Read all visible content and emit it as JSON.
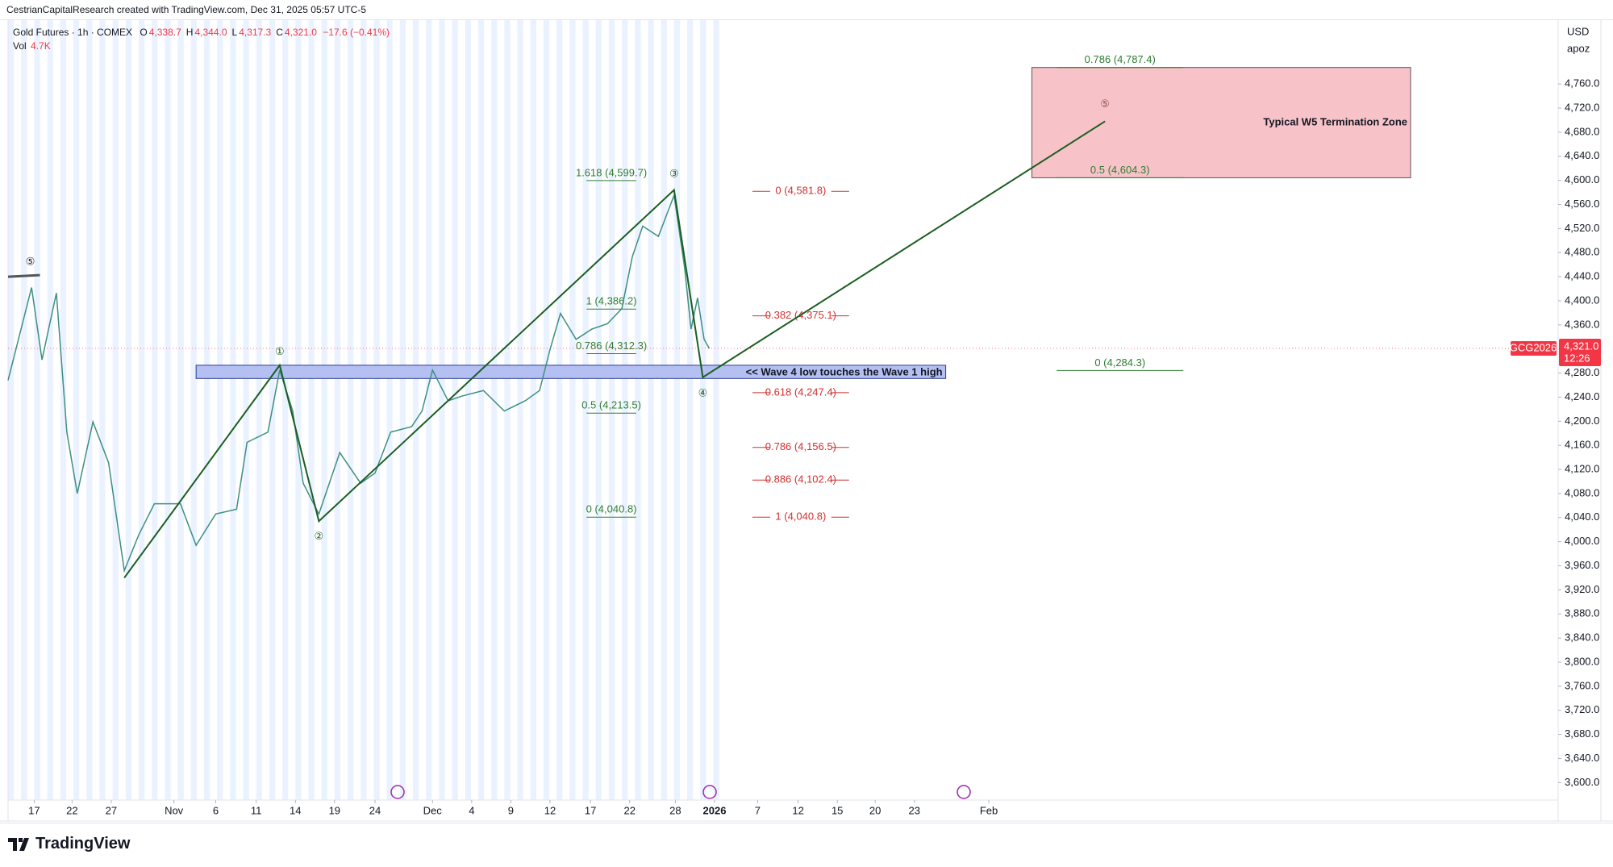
{
  "header": {
    "attribution": "CestrianCapitalResearch created with TradingView.com, Dec 31, 2025 05:57 UTC-5",
    "logo": "TradingView"
  },
  "chart_data": {
    "type": "line",
    "title": "Gold Futures · 1h · COMEX",
    "ohlc": [
      {
        "name": "O",
        "value": {
          "value": 4338.7,
          "label": "4,338.7"
        }
      },
      {
        "name": "H",
        "value": {
          "value": 4344.0,
          "label": "4,344.0"
        }
      },
      {
        "name": "L",
        "value": {
          "value": 4317.3,
          "label": "4,317.3"
        }
      },
      {
        "name": "C",
        "value": {
          "value": 4321.0,
          "label": "4,321.0"
        }
      }
    ],
    "change": "−17.6 (−0.41%)",
    "volume": {
      "name": "Vol",
      "label": "4.7K"
    },
    "currency": "USD",
    "scale_label": "apoz",
    "symbol": "GCG2026",
    "last_price": {
      "value": 4321.0,
      "label": "4,321.0"
    },
    "countdown": "12:26",
    "x": [
      -2.0,
      -0.2,
      0.6,
      1.7,
      2.5,
      3.3,
      4.5,
      5.7,
      6.9,
      8.0,
      9.2,
      11.2,
      12.4,
      13.9,
      15.5,
      16.3,
      17.9,
      18.8,
      19.8,
      20.6,
      21.8,
      23.4,
      25.0,
      26.1,
      27.3,
      28.9,
      29.7,
      30.5,
      31.7,
      32.8,
      34.4,
      36.0,
      37.6,
      38.7,
      39.5,
      40.3,
      41.5,
      42.7,
      43.9,
      45.0,
      45.8,
      46.6,
      47.8,
      49.0,
      49.8,
      50.3,
      50.8,
      51.3,
      51.7
    ],
    "series": [
      {
        "color": "#3d8f80",
        "values": [
          4268,
          4422,
          4302,
          4413,
          4182,
          4080,
          4199,
          4131,
          3952,
          4011,
          4063,
          4063,
          3994,
          4046,
          4054,
          4165,
          4182,
          4285,
          4217,
          4097,
          4046,
          4148,
          4097,
          4114,
          4182,
          4191,
          4217,
          4285,
          4234,
          4242,
          4251,
          4217,
          4234,
          4251,
          4319,
          4379,
          4336,
          4353,
          4362,
          4387,
          4473,
          4524,
          4507,
          4575,
          4456,
          4353,
          4405,
          4336,
          4321
        ]
      }
    ],
    "xlim": [
      -2.0,
      116.7
    ],
    "xticks": [
      {
        "value": 0,
        "label": "17"
      },
      {
        "value": 2.9,
        "label": "22"
      },
      {
        "value": 5.9,
        "label": "27"
      },
      {
        "value": 10.7,
        "label": "Nov"
      },
      {
        "value": 13.9,
        "label": "6"
      },
      {
        "value": 17.0,
        "label": "11"
      },
      {
        "value": 20.0,
        "label": "14"
      },
      {
        "value": 23.0,
        "label": "19"
      },
      {
        "value": 26.1,
        "label": "24"
      },
      {
        "value": 30.5,
        "label": "Dec"
      },
      {
        "value": 33.5,
        "label": "4"
      },
      {
        "value": 36.5,
        "label": "9"
      },
      {
        "value": 39.5,
        "label": "12"
      },
      {
        "value": 42.6,
        "label": "17"
      },
      {
        "value": 45.6,
        "label": "22"
      },
      {
        "value": 49.1,
        "label": "28"
      },
      {
        "value": 52.1,
        "label": "2026"
      },
      {
        "value": 55.4,
        "label": "7"
      },
      {
        "value": 58.5,
        "label": "12"
      },
      {
        "value": 61.5,
        "label": "15"
      },
      {
        "value": 64.4,
        "label": "20"
      },
      {
        "value": 67.4,
        "label": "23"
      },
      {
        "value": 73.1,
        "label": "Feb"
      }
    ],
    "ylim": [
      3571,
      4866
    ],
    "yticks": [
      {
        "value": 3600,
        "label": "3,600.0"
      },
      {
        "value": 3640,
        "label": "3,640.0"
      },
      {
        "value": 3680,
        "label": "3,680.0"
      },
      {
        "value": 3720,
        "label": "3,720.0"
      },
      {
        "value": 3760,
        "label": "3,760.0"
      },
      {
        "value": 3800,
        "label": "3,800.0"
      },
      {
        "value": 3840,
        "label": "3,840.0"
      },
      {
        "value": 3880,
        "label": "3,880.0"
      },
      {
        "value": 3920,
        "label": "3,920.0"
      },
      {
        "value": 3960,
        "label": "3,960.0"
      },
      {
        "value": 4000,
        "label": "4,000.0"
      },
      {
        "value": 4040,
        "label": "4,040.0"
      },
      {
        "value": 4080,
        "label": "4,080.0"
      },
      {
        "value": 4120,
        "label": "4,120.0"
      },
      {
        "value": 4160,
        "label": "4,160.0"
      },
      {
        "value": 4200,
        "label": "4,200.0"
      },
      {
        "value": 4240,
        "label": "4,240.0"
      },
      {
        "value": 4280,
        "label": "4,280.0"
      },
      {
        "value": 4320,
        "label": "4,320.0"
      },
      {
        "value": 4360,
        "label": "4,360.0"
      },
      {
        "value": 4400,
        "label": "4,400.0"
      },
      {
        "value": 4440,
        "label": "4,440.0"
      },
      {
        "value": 4480,
        "label": "4,480.0"
      },
      {
        "value": 4520,
        "label": "4,520.0"
      },
      {
        "value": 4560,
        "label": "4,560.0"
      },
      {
        "value": 4600,
        "label": "4,600.0"
      },
      {
        "value": 4640,
        "label": "4,640.0"
      },
      {
        "value": 4680,
        "label": "4,680.0"
      },
      {
        "value": 4720,
        "label": "4,720.0"
      },
      {
        "value": 4760,
        "label": "4,760.0"
      }
    ],
    "waves": {
      "color": "#1b5e20",
      "x": [
        6.9,
        18.8,
        21.8,
        49.0,
        51.2,
        82.0
      ],
      "y": [
        3940,
        4293,
        4034,
        4584,
        4273,
        4698
      ]
    },
    "wave_labels": [
      {
        "label": "⑤",
        "x": -0.3,
        "y": 4464,
        "color": "#131722"
      },
      {
        "label": "①",
        "x": 18.8,
        "y": 4315,
        "color": "#1b5e20"
      },
      {
        "label": "②",
        "x": 21.8,
        "y": 4008,
        "color": "#1b5e20"
      },
      {
        "label": "③",
        "x": 49.0,
        "y": 4610,
        "color": "#1b5e20"
      },
      {
        "label": "④",
        "x": 51.2,
        "y": 4246,
        "color": "#1b5e20"
      },
      {
        "label": "⑤",
        "x": 82.0,
        "y": 4726,
        "color": "#8a4a4a"
      }
    ],
    "zones": [
      {
        "label": "<< Wave 4 low touches the Wave 1 high",
        "x": [
          12.4,
          69.8
        ],
        "y": [
          4271,
          4293
        ],
        "color": "#b4c0f2"
      },
      {
        "label": "Typical W5 Termination Zone",
        "x": [
          76.4,
          105.4
        ],
        "y": [
          4604.3,
          4787.4
        ],
        "color": "#f8c3c8"
      }
    ],
    "fib_levels": [
      {
        "label": "1.618 (4,599.7)",
        "value": 4599.7,
        "x": [
          42.3,
          46.1
        ],
        "color": "#2e7d32",
        "style": "above"
      },
      {
        "label": "1 (4,386.2)",
        "value": 4386.2,
        "x": [
          42.3,
          46.1
        ],
        "color": "#2e7d32",
        "style": "above"
      },
      {
        "label": "0.786 (4,312.3)",
        "value": 4312.3,
        "x": [
          42.3,
          46.1
        ],
        "color": "#2e7d32",
        "style": "above"
      },
      {
        "label": "0.5 (4,213.5)",
        "value": 4213.5,
        "x": [
          42.3,
          46.1
        ],
        "color": "#2e7d32",
        "style": "above"
      },
      {
        "label": "0 (4,040.8)",
        "value": 4040.8,
        "x": [
          42.3,
          46.1
        ],
        "color": "#2e7d32",
        "style": "above"
      },
      {
        "label": "0 (4,581.8)",
        "value": 4581.8,
        "x": [
          55.0,
          62.4
        ],
        "color": "#d32f2f",
        "style": "inline"
      },
      {
        "label": "0.382 (4,375.1)",
        "value": 4375.1,
        "x": [
          55.0,
          62.4
        ],
        "color": "#d32f2f",
        "style": "inline"
      },
      {
        "label": "0.618 (4,247.4)",
        "value": 4247.4,
        "x": [
          55.0,
          62.4
        ],
        "color": "#d32f2f",
        "style": "inline"
      },
      {
        "label": "0.786 (4,156.5)",
        "value": 4156.5,
        "x": [
          55.0,
          62.4
        ],
        "color": "#d32f2f",
        "style": "inline"
      },
      {
        "label": "0.886 (4,102.4)",
        "value": 4102.4,
        "x": [
          55.0,
          62.4
        ],
        "color": "#d32f2f",
        "style": "inline"
      },
      {
        "label": "1 (4,040.8)",
        "value": 4040.8,
        "x": [
          55.0,
          62.4
        ],
        "color": "#d32f2f",
        "style": "inline"
      },
      {
        "label": "0.786 (4,787.4)",
        "value": 4787.4,
        "x": [
          78.3,
          88.0
        ],
        "color": "#2e7d32",
        "style": "above"
      },
      {
        "label": "0.5 (4,604.3)",
        "value": 4604.3,
        "x": [
          78.3,
          88.0
        ],
        "color": "#2e7d32",
        "style": "above"
      },
      {
        "label": "0 (4,284.3)",
        "value": 4284.3,
        "x": [
          78.3,
          88.0
        ],
        "color": "#2e7d32",
        "style": "above"
      }
    ]
  }
}
